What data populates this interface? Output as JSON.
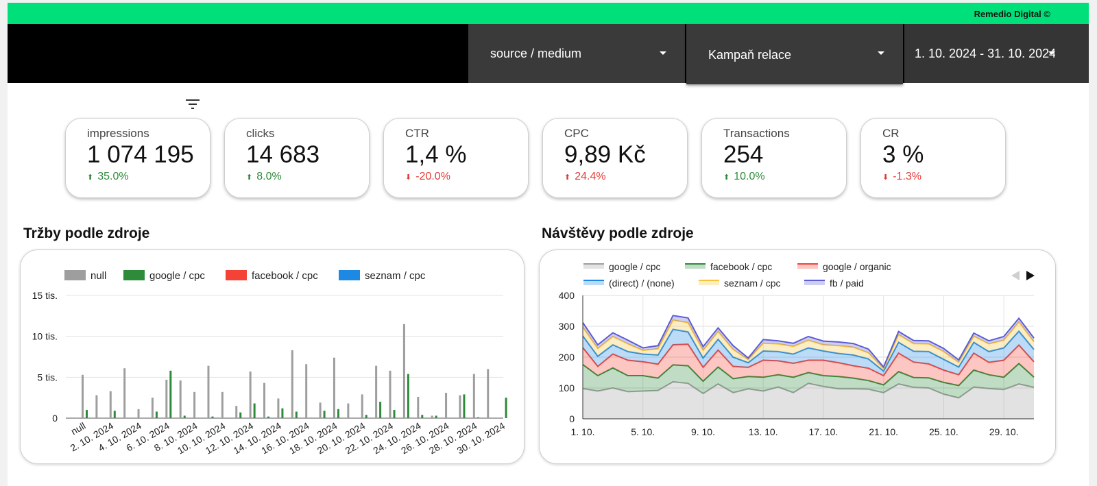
{
  "brand": "Remedio Digital ©",
  "filters": [
    {
      "label": "source / medium"
    },
    {
      "label": "Kampaň relace"
    },
    {
      "label": "1. 10. 2024 - 31. 10. 2024"
    }
  ],
  "scorecards": [
    {
      "label": "impressions",
      "value": "1 074 195",
      "delta": "35.0%",
      "trend": "up"
    },
    {
      "label": "clicks",
      "value": "14 683",
      "delta": "8.0%",
      "trend": "up"
    },
    {
      "label": "CTR",
      "value": "1,4 %",
      "delta": "-20.0%",
      "trend": "down"
    },
    {
      "label": "CPC",
      "value": "9,89 Kč",
      "delta": "24.4%",
      "trend": "up_bad"
    },
    {
      "label": "Transactions",
      "value": "254",
      "delta": "10.0%",
      "trend": "up"
    },
    {
      "label": "CR",
      "value": "3 %",
      "delta": "-1.3%",
      "trend": "down"
    }
  ],
  "colors": {
    "up": "#2e8b3a",
    "down": "#e53935",
    "accent": "#00e07a"
  },
  "revenue_title": "Tržby podle zdroje",
  "visits_title": "Návštěvy podle zdroje",
  "chart_data": [
    {
      "type": "bar",
      "title": "Tržby podle zdroje",
      "categories": [
        "null",
        "2. 10. 2024",
        "3. 10. 2024",
        "4. 10. 2024",
        "5. 10. 2024",
        "6. 10. 2024",
        "7. 10. 2024",
        "8. 10. 2024",
        "9. 10. 2024",
        "10. 10. 2024",
        "11. 10. 2024",
        "12. 10. 2024",
        "13. 10. 2024",
        "14. 10. 2024",
        "15. 10. 2024",
        "16. 10. 2024",
        "17. 10. 2024",
        "18. 10. 2024",
        "19. 10. 2024",
        "20. 10. 2024",
        "21. 10. 2024",
        "22. 10. 2024",
        "23. 10. 2024",
        "24. 10. 2024",
        "25. 10. 2024",
        "26. 10. 2024",
        "27. 10. 2024",
        "28. 10. 2024",
        "29. 10. 2024",
        "30. 10. 2024",
        "31. 10. 2024"
      ],
      "tick_labels": [
        "null",
        "2. 10. 2024",
        "4. 10. 2024",
        "6. 10. 2024",
        "8. 10. 2024",
        "10. 10. 2024",
        "12. 10. 2024",
        "14. 10. 2024",
        "16. 10. 2024",
        "18. 10. 2024",
        "20. 10. 2024",
        "22. 10. 2024",
        "24. 10. 2024",
        "26. 10. 2024",
        "28. 10. 2024",
        "30. 10. 2024"
      ],
      "y_ticks": [
        "0",
        "5 tis.",
        "10 tis.",
        "15 tis."
      ],
      "ylim": [
        0,
        15000
      ],
      "legend_position": "top",
      "grid": true,
      "series": [
        {
          "name": "null",
          "color": "#9e9e9e",
          "values": [
            5300,
            2800,
            3300,
            6100,
            1100,
            2500,
            4700,
            4600,
            3200,
            6400,
            3200,
            1500,
            5700,
            4300,
            2400,
            8300,
            6600,
            1900,
            7400,
            1800,
            2900,
            6400,
            5800,
            11500,
            2600,
            300,
            3100,
            2800,
            5400,
            6000,
            0
          ]
        },
        {
          "name": "google / cpc",
          "color": "#2e8b3a",
          "values": [
            1000,
            0,
            900,
            0,
            0,
            800,
            5800,
            300,
            0,
            200,
            0,
            700,
            1800,
            200,
            1200,
            800,
            0,
            900,
            1100,
            0,
            400,
            2000,
            1000,
            5400,
            400,
            300,
            0,
            2900,
            100,
            0,
            2500
          ]
        },
        {
          "name": "facebook / cpc",
          "color": "#f44336",
          "values": [
            0,
            0,
            0,
            0,
            0,
            0,
            0,
            0,
            0,
            0,
            0,
            0,
            0,
            0,
            0,
            0,
            0,
            0,
            0,
            0,
            0,
            0,
            0,
            0,
            0,
            0,
            0,
            0,
            0,
            0,
            0
          ]
        },
        {
          "name": "seznam / cpc",
          "color": "#1e88e5",
          "values": [
            0,
            0,
            0,
            0,
            0,
            0,
            0,
            0,
            0,
            0,
            0,
            0,
            0,
            0,
            0,
            0,
            0,
            0,
            0,
            0,
            0,
            0,
            0,
            0,
            0,
            0,
            0,
            0,
            0,
            0,
            0
          ]
        }
      ]
    },
    {
      "type": "area",
      "stacked": true,
      "title": "Návštěvy podle zdroje",
      "x": [
        "1. 10.",
        "2. 10.",
        "3. 10.",
        "4. 10.",
        "5. 10.",
        "6. 10.",
        "7. 10.",
        "8. 10.",
        "9. 10.",
        "10. 10.",
        "11. 10.",
        "12. 10.",
        "13. 10.",
        "14. 10.",
        "15. 10.",
        "16. 10.",
        "17. 10.",
        "18. 10.",
        "19. 10.",
        "20. 10.",
        "21. 10.",
        "22. 10.",
        "23. 10.",
        "24. 10.",
        "25. 10.",
        "26. 10.",
        "27. 10.",
        "28. 10.",
        "29. 10.",
        "30. 10.",
        "31. 10."
      ],
      "x_ticks": [
        "1. 10.",
        "5. 10.",
        "9. 10.",
        "13. 10.",
        "17. 10.",
        "21. 10.",
        "25. 10.",
        "29. 10."
      ],
      "y_ticks": [
        "0",
        "100",
        "200",
        "300",
        "400"
      ],
      "ylim": [
        0,
        400
      ],
      "legend_position": "top",
      "grid": true,
      "series": [
        {
          "name": "google / cpc",
          "color": "#9e9e9e",
          "values": [
            98,
            90,
            100,
            88,
            90,
            92,
            120,
            115,
            82,
            113,
            85,
            97,
            90,
            103,
            85,
            115,
            105,
            97,
            97,
            96,
            85,
            113,
            102,
            100,
            80,
            68,
            103,
            98,
            95,
            113,
            102
          ]
        },
        {
          "name": "facebook / cpc",
          "color": "#2e8b3a",
          "values": [
            78,
            50,
            65,
            52,
            50,
            40,
            55,
            57,
            40,
            55,
            45,
            40,
            45,
            40,
            50,
            35,
            35,
            40,
            35,
            28,
            25,
            40,
            32,
            33,
            38,
            40,
            55,
            45,
            40,
            66,
            33
          ]
        },
        {
          "name": "google / organic",
          "color": "#f44336",
          "values": [
            55,
            30,
            45,
            50,
            45,
            45,
            65,
            70,
            45,
            55,
            40,
            30,
            55,
            45,
            45,
            40,
            50,
            45,
            40,
            40,
            30,
            60,
            50,
            45,
            40,
            35,
            55,
            40,
            55,
            60,
            50
          ]
        },
        {
          "name": "(direct) / (none)",
          "color": "#1e88e5",
          "values": [
            38,
            33,
            30,
            28,
            25,
            30,
            50,
            40,
            30,
            35,
            30,
            15,
            30,
            30,
            30,
            40,
            30,
            30,
            35,
            30,
            15,
            35,
            35,
            40,
            35,
            25,
            35,
            35,
            40,
            45,
            40
          ]
        },
        {
          "name": "seznam / cpc",
          "color": "#f9c23c",
          "values": [
            28,
            25,
            27,
            25,
            12,
            20,
            30,
            30,
            25,
            25,
            25,
            10,
            25,
            25,
            25,
            25,
            20,
            25,
            25,
            20,
            8,
            25,
            25,
            25,
            25,
            15,
            20,
            25,
            25,
            30,
            25
          ]
        },
        {
          "name": "fb / paid",
          "color": "#5c5cd6",
          "values": [
            15,
            12,
            12,
            12,
            8,
            10,
            15,
            15,
            12,
            12,
            12,
            5,
            12,
            10,
            10,
            12,
            12,
            12,
            12,
            12,
            5,
            10,
            10,
            10,
            10,
            8,
            10,
            10,
            12,
            12,
            12
          ]
        }
      ]
    }
  ]
}
